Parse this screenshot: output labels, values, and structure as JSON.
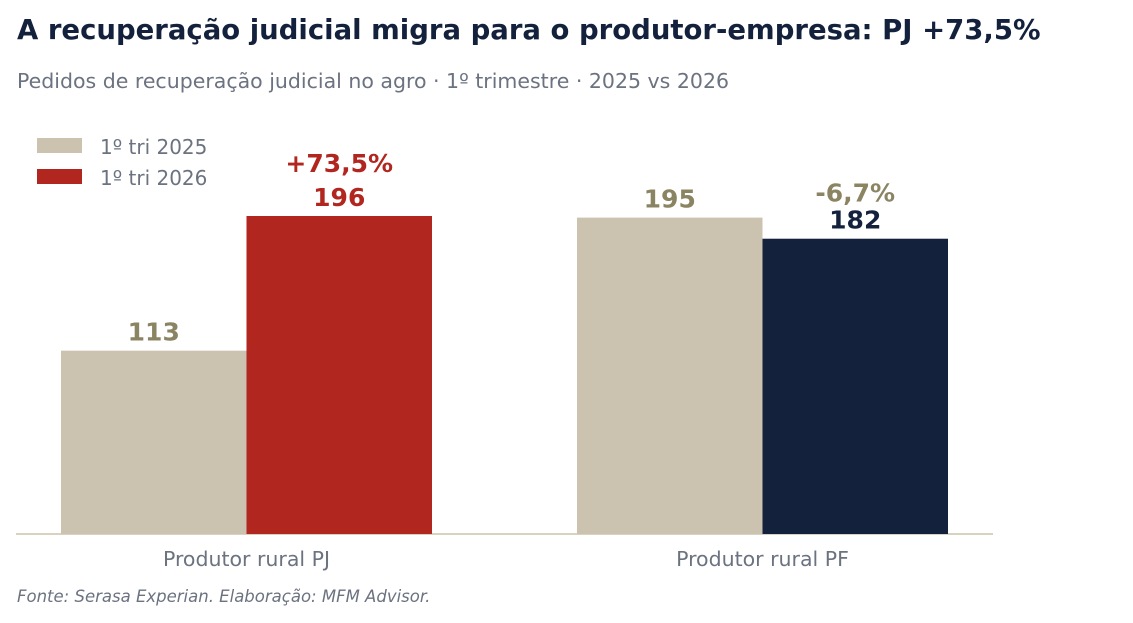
{
  "header": {
    "title": "A recuperação judicial migra para o produtor-empresa: PJ +73,5%",
    "subtitle": "Pedidos de recuperação judicial no agro · 1º trimestre · 2025 vs 2026"
  },
  "footer": {
    "source": "Fonte: Serasa Experian. Elaboração: MFM Advisor."
  },
  "chart_data": {
    "type": "bar",
    "categories": [
      "Produtor rural PJ",
      "Produtor rural PF"
    ],
    "series": [
      {
        "name": "1º tri 2025",
        "values": [
          113,
          195
        ],
        "colors": [
          "#cbc3b0",
          "#cbc3b0"
        ]
      },
      {
        "name": "1º tri 2026",
        "values": [
          196,
          182
        ],
        "colors": [
          "#b1261e",
          "#14213d"
        ]
      }
    ],
    "value_label_colors": {
      "1º tri 2025": [
        "#8a8462",
        "#8a8462"
      ],
      "1º tri 2026": [
        "#b1261e",
        "#14213d"
      ]
    },
    "annotations": [
      {
        "category": "Produtor rural PJ",
        "text": "+73,5%",
        "color": "#b1261e"
      },
      {
        "category": "Produtor rural PF",
        "text": "-6,7%",
        "color": "#8a8462"
      }
    ],
    "legend_colors": [
      "#cbc3b0",
      "#b1261e"
    ],
    "ylim": [
      0,
      200
    ],
    "grid": false,
    "legend": "top-left",
    "xlabel": "",
    "ylabel": ""
  }
}
